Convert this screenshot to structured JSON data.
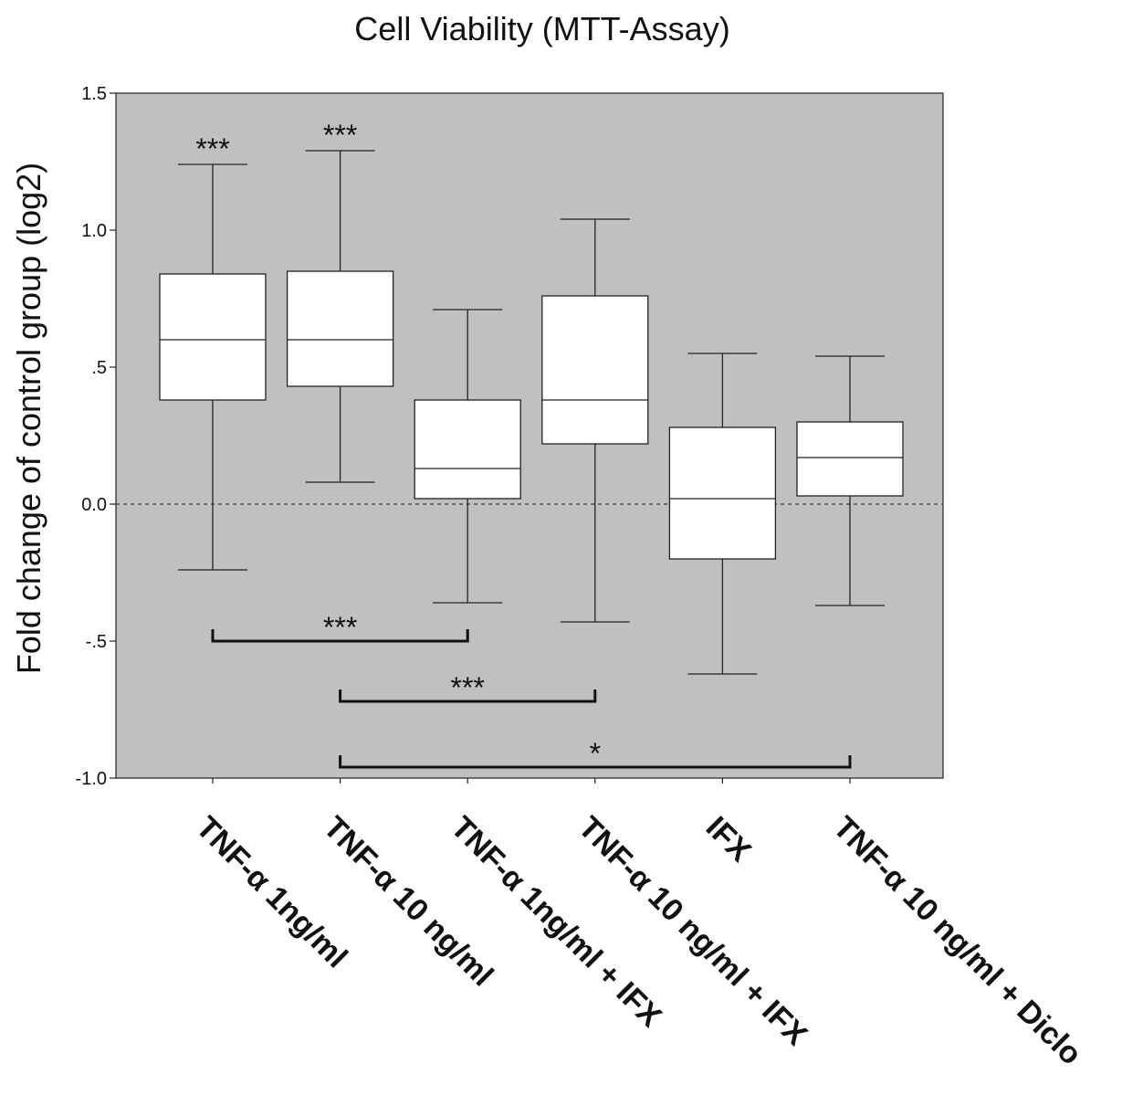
{
  "chart_data": {
    "type": "box",
    "title": "Cell Viability (MTT-Assay)",
    "xlabel": "",
    "ylabel": "Fold change of control group (log2)",
    "ylim": [
      -1.0,
      1.5
    ],
    "yticks": [
      {
        "value": 1.5,
        "label": "1.5"
      },
      {
        "value": 1.0,
        "label": "1.0"
      },
      {
        "value": 0.5,
        "label": ".5"
      },
      {
        "value": 0.0,
        "label": "0.0"
      },
      {
        "value": -0.5,
        "label": "-.5"
      },
      {
        "value": -1.0,
        "label": "-1.0"
      }
    ],
    "reference_line": {
      "value": 0.0,
      "style": "dashed"
    },
    "grid": false,
    "plot_background": "#c0c0c0",
    "categories": [
      "TNF-α 1ng/ml",
      "TNF-α 10 ng/ml",
      "TNF-α 1ng/ml + IFX",
      "TNF-α 10 ng/ml + IFX",
      "IFX",
      "TNF-α 10 ng/ml + Diclo"
    ],
    "boxes": [
      {
        "min": -0.24,
        "q1": 0.38,
        "median": 0.6,
        "q3": 0.84,
        "max": 1.24
      },
      {
        "min": 0.08,
        "q1": 0.43,
        "median": 0.6,
        "q3": 0.85,
        "max": 1.29
      },
      {
        "min": -0.36,
        "q1": 0.02,
        "median": 0.13,
        "q3": 0.38,
        "max": 0.71
      },
      {
        "min": -0.43,
        "q1": 0.22,
        "median": 0.38,
        "q3": 0.76,
        "max": 1.04
      },
      {
        "min": -0.62,
        "q1": -0.2,
        "median": 0.02,
        "q3": 0.28,
        "max": 0.55
      },
      {
        "min": -0.37,
        "q1": 0.03,
        "median": 0.17,
        "q3": 0.3,
        "max": 0.54
      }
    ],
    "significance_markers": [
      {
        "category": 0,
        "label": "***"
      },
      {
        "category": 1,
        "label": "***"
      }
    ],
    "comparison_brackets": [
      {
        "from": 0,
        "to": 2,
        "y": -0.5,
        "label": "***"
      },
      {
        "from": 1,
        "to": 3,
        "y": -0.72,
        "label": "***"
      },
      {
        "from": 1,
        "to": 5,
        "y": -0.96,
        "label": "*"
      }
    ]
  }
}
